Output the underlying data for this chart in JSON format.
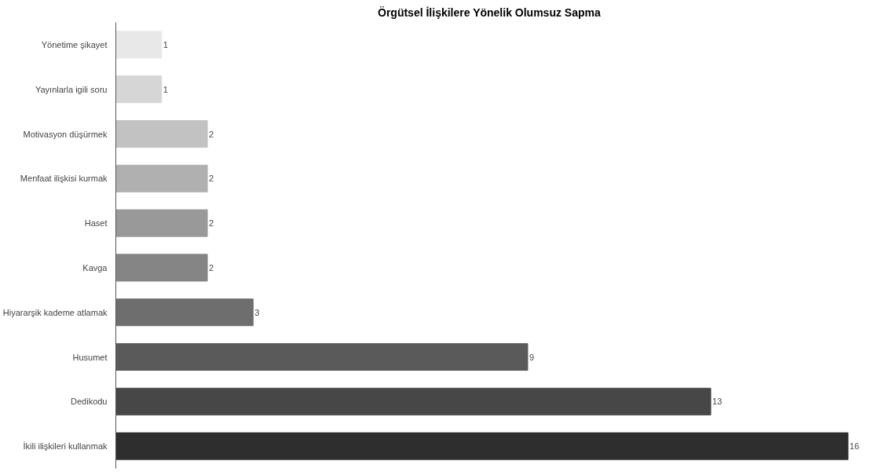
{
  "chart_data": {
    "type": "bar",
    "orientation": "horizontal",
    "title": "Örgütsel İlişkilere Yönelik Olumsuz Sapma",
    "categories": [
      "Yönetime şikayet",
      "Yayınlarla igili soru",
      "Motivasyon düşürmek",
      "Menfaat ilişkisi kurmak",
      "Haset",
      "Kavga",
      "Hiyararşik kademe atlamak",
      "Husumet",
      "Dedikodu",
      "İkili ilişkileri kullanmak"
    ],
    "values": [
      1,
      1,
      2,
      2,
      2,
      2,
      3,
      9,
      13,
      16
    ],
    "colors": [
      "#e8e8e8",
      "#d6d6d6",
      "#c2c2c2",
      "#b0b0b0",
      "#999999",
      "#858585",
      "#6e6e6e",
      "#5a5a5a",
      "#474747",
      "#2e2e2e"
    ],
    "data_labels": true,
    "grid": false
  }
}
